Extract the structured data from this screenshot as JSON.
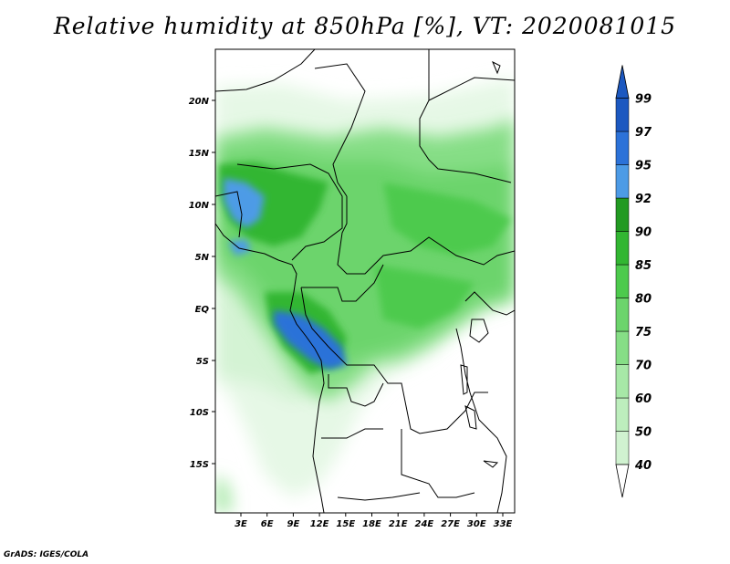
{
  "title": "Relative humidity at 850hPa [%], VT: 2020081015",
  "credit": "GrADS: IGES/COLA",
  "map": {
    "lat_ticks": [
      "20N",
      "15N",
      "10N",
      "5N",
      "EQ",
      "5S",
      "10S",
      "15S"
    ],
    "lon_ticks": [
      "3E",
      "6E",
      "9E",
      "12E",
      "15E",
      "18E",
      "21E",
      "24E",
      "27E",
      "30E",
      "33E"
    ]
  },
  "colorbar": {
    "levels": [
      "40",
      "50",
      "60",
      "70",
      "75",
      "80",
      "85",
      "90",
      "92",
      "95",
      "97",
      "99"
    ],
    "colors": {
      "40": "#e6f8e6",
      "50": "#d0f2d0",
      "60": "#bdeebd",
      "70": "#a7e8a7",
      "75": "#86de86",
      "80": "#6cd46c",
      "85": "#4dca4d",
      "90": "#32b632",
      "92": "#229a22",
      "95": "#4d9be6",
      "97": "#2c72d8",
      "99": "#1c58c0"
    }
  }
}
